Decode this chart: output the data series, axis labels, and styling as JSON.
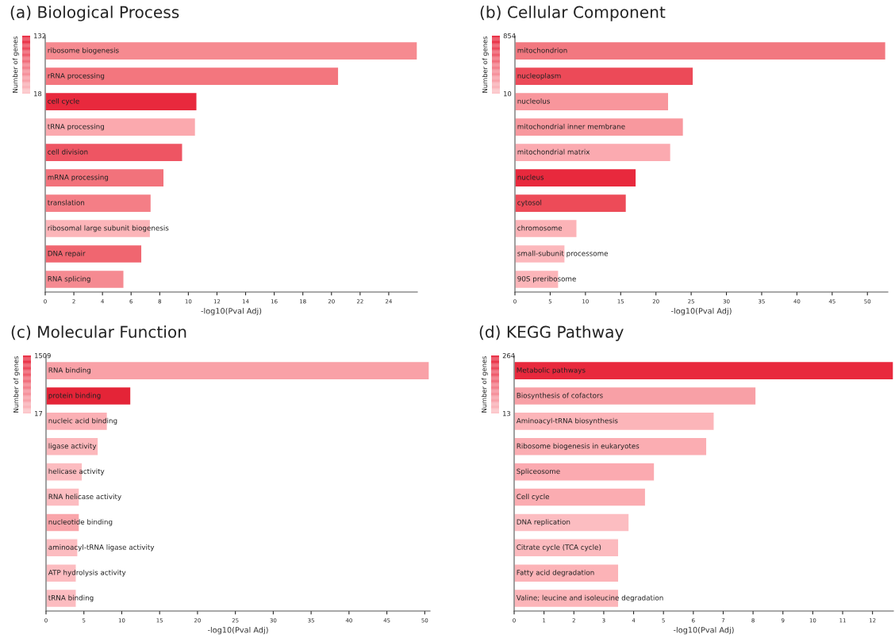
{
  "chart_data": [
    {
      "type": "bar",
      "orientation": "horizontal",
      "title": "(a) Biological Process",
      "xlabel": "-log10(Pval Adj)",
      "clabel": "Number of genes",
      "clim": [
        18,
        132
      ],
      "cticks": [
        18,
        132
      ],
      "tick_labels": "x",
      "grid": false,
      "legend": false,
      "categories": [
        "ribosome biogenesis",
        "rRNA processing",
        "cell cycle",
        "tRNA processing",
        "cell division",
        "mRNA processing",
        "translation",
        "ribosomal large subunit biogenesis",
        "DNA repair",
        "RNA splicing"
      ],
      "values": [
        26.0,
        20.5,
        10.6,
        10.5,
        9.6,
        8.3,
        7.4,
        7.35,
        6.75,
        5.5
      ],
      "colors": [
        "#f68a90",
        "#f3767e",
        "#e8293d",
        "#fba9ae",
        "#ee5563",
        "#f2727b",
        "#f47e86",
        "#fcb5b9",
        "#f06670",
        "#f58a91"
      ],
      "xlim": [
        0,
        26
      ],
      "xticks": [
        0,
        2,
        4,
        6,
        8,
        10,
        12,
        14,
        16,
        18,
        20,
        22,
        24
      ]
    },
    {
      "type": "bar",
      "orientation": "horizontal",
      "title": "(b) Cellular Component",
      "xlabel": "-log10(Pval Adj)",
      "clabel": "Number of genes",
      "clim": [
        10,
        854
      ],
      "cticks": [
        10,
        854
      ],
      "tick_labels": "x",
      "grid": false,
      "legend": false,
      "categories": [
        "mitochondrion",
        "nucleoplasm",
        "nucleolus",
        "mitochondrial inner membrane",
        "mitochondrial matrix",
        "nucleus",
        "cytosol",
        "chromosome",
        "small-subunit processome",
        "90S preribosome"
      ],
      "values": [
        52.6,
        25.3,
        21.8,
        23.9,
        22.1,
        17.2,
        15.8,
        8.8,
        7.1,
        6.2
      ],
      "colors": [
        "#f27880",
        "#ec4a58",
        "#f8969c",
        "#f8989e",
        "#fbaab0",
        "#e8293d",
        "#ed4b58",
        "#fcb3b7",
        "#fcb8bc",
        "#fcb5b9"
      ],
      "xlim": [
        0,
        52.9
      ],
      "xticks": [
        0,
        5,
        10,
        15,
        20,
        25,
        30,
        35,
        40,
        45,
        50
      ]
    },
    {
      "type": "bar",
      "orientation": "horizontal",
      "title": "(c) Molecular Function",
      "xlabel": "-log10(Pval Adj)",
      "clabel": "Number of genes",
      "clim": [
        17,
        1509
      ],
      "cticks": [
        17,
        1509
      ],
      "tick_labels": "x",
      "grid": false,
      "legend": false,
      "categories": [
        "RNA binding",
        "protein binding",
        "nucleic acid binding",
        "ligase activity",
        "helicase activity",
        "RNA helicase activity",
        "nucleotide binding",
        "aminoacyl-tRNA ligase activity",
        "ATP hydrolysis activity",
        "tRNA binding"
      ],
      "values": [
        50.6,
        11.2,
        8.1,
        6.9,
        4.8,
        4.4,
        4.4,
        4.2,
        4.0,
        4.0
      ],
      "colors": [
        "#f9a1a7",
        "#e42437",
        "#fbb0b5",
        "#fcb8bc",
        "#fcbcc0",
        "#fcbcc0",
        "#f9a5aa",
        "#fcbcc0",
        "#fcbcc0",
        "#fcbcc0"
      ],
      "xlim": [
        0,
        50.7
      ],
      "xticks": [
        0,
        5,
        10,
        15,
        20,
        25,
        30,
        35,
        40,
        45,
        50
      ]
    },
    {
      "type": "bar",
      "orientation": "horizontal",
      "title": "(d) KEGG Pathway",
      "xlabel": "-log10(Pval Adj)",
      "clabel": "Number of genes",
      "clim": [
        13,
        264
      ],
      "cticks": [
        13,
        264
      ],
      "tick_labels": "x",
      "grid": false,
      "legend": false,
      "categories": [
        "Metabolic pathways",
        "Biosynthesis of cofactors",
        "Aminoacyl-tRNA biosynthesis",
        "Ribosome biogenesis in eukaryotes",
        "Spliceosome",
        "Cell cycle",
        "DNA replication",
        "Citrate cycle (TCA cycle)",
        "Fatty acid degradation",
        "Valine; leucine and isoleucine degradation"
      ],
      "values": [
        12.7,
        8.1,
        6.7,
        6.45,
        4.7,
        4.4,
        3.85,
        3.5,
        3.5,
        3.5
      ],
      "colors": [
        "#e8293d",
        "#f8a0a6",
        "#fcb5b9",
        "#fbadb2",
        "#fbaab0",
        "#fbacb1",
        "#fcbdc1",
        "#fcbabe",
        "#fcb3b7",
        "#fcb5b9"
      ],
      "xlim": [
        0,
        12.7
      ],
      "xticks": [
        0,
        1,
        2,
        3,
        4,
        5,
        6,
        7,
        8,
        9,
        10,
        11,
        12
      ]
    }
  ]
}
